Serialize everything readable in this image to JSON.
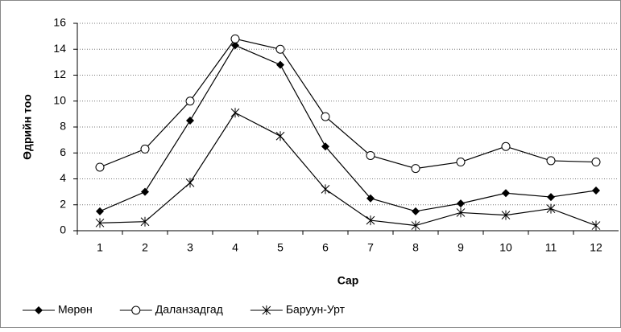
{
  "chart_data": {
    "type": "line",
    "x_label": "Сар",
    "y_label": "Өдрийн тоо",
    "categories": [
      "1",
      "2",
      "3",
      "4",
      "5",
      "6",
      "7",
      "8",
      "9",
      "10",
      "11",
      "12"
    ],
    "series": [
      {
        "name": "Мөрөн",
        "color": "#000000",
        "marker": "diamond",
        "values": [
          1.5,
          3.0,
          8.5,
          14.3,
          12.8,
          6.5,
          2.5,
          1.5,
          2.1,
          2.9,
          2.6,
          3.1
        ]
      },
      {
        "name": "Даланзадгад",
        "color": "#000000",
        "marker": "circle",
        "values": [
          4.9,
          6.3,
          10.0,
          14.8,
          14.0,
          8.8,
          5.8,
          4.8,
          5.3,
          6.5,
          5.4,
          5.3
        ]
      },
      {
        "name": "Баруун-Урт",
        "color": "#000000",
        "marker": "star",
        "values": [
          0.6,
          0.7,
          3.7,
          9.1,
          7.3,
          3.2,
          0.8,
          0.4,
          1.4,
          1.2,
          1.7,
          0.4
        ]
      }
    ],
    "ylim": [
      0,
      16
    ],
    "yticks": [
      0,
      2,
      4,
      6,
      8,
      10,
      12,
      14,
      16
    ],
    "grid": true,
    "legend": "bottom"
  }
}
